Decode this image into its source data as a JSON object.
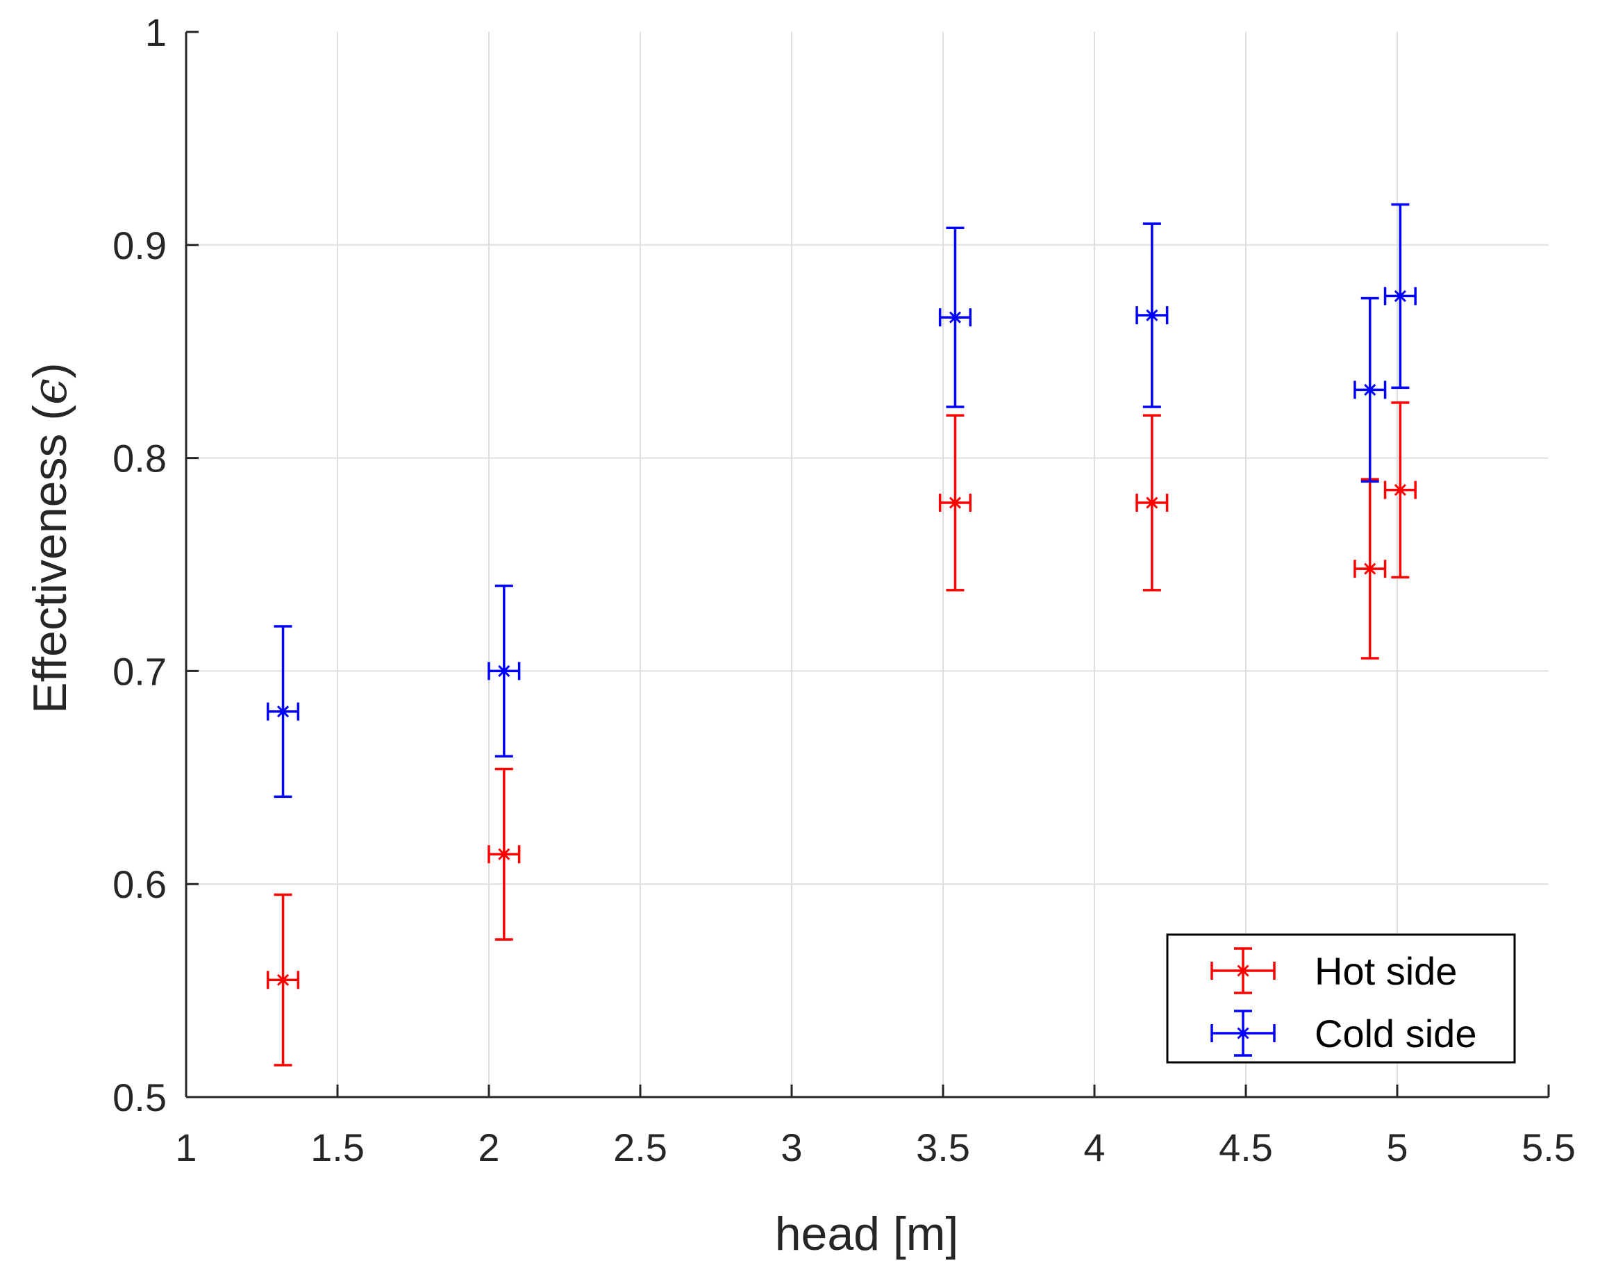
{
  "chart_data": {
    "type": "scatter",
    "title": "",
    "xlabel": "head [m]",
    "ylabel_main": "Effectiveness (",
    "ylabel_symbol": "ϵ",
    "ylabel_close": ")",
    "xlim": [
      1,
      5.5
    ],
    "ylim": [
      0.5,
      1
    ],
    "grid": true,
    "legend_placement": "bottom-right",
    "x_ticks": [
      "1",
      "1.5",
      "2",
      "2.5",
      "3",
      "3.5",
      "4",
      "4.5",
      "5",
      "5.5"
    ],
    "y_ticks": [
      "0.5",
      "0.6",
      "0.7",
      "0.8",
      "0.9",
      "1"
    ],
    "series": [
      {
        "name": "Hot side",
        "color": "#ff0000",
        "marker": "asterisk",
        "points": [
          {
            "x": 1.32,
            "y": 0.555,
            "yerr": 0.04,
            "xerr": 0.05
          },
          {
            "x": 2.05,
            "y": 0.614,
            "yerr": 0.04,
            "xerr": 0.05
          },
          {
            "x": 3.54,
            "y": 0.779,
            "yerr": 0.041,
            "xerr": 0.05
          },
          {
            "x": 4.19,
            "y": 0.779,
            "yerr": 0.041,
            "xerr": 0.05
          },
          {
            "x": 4.91,
            "y": 0.748,
            "yerr": 0.042,
            "xerr": 0.05
          },
          {
            "x": 5.01,
            "y": 0.785,
            "yerr": 0.041,
            "xerr": 0.05
          }
        ]
      },
      {
        "name": "Cold side",
        "color": "#0000ff",
        "marker": "asterisk",
        "points": [
          {
            "x": 1.32,
            "y": 0.681,
            "yerr": 0.04,
            "xerr": 0.05
          },
          {
            "x": 2.05,
            "y": 0.7,
            "yerr": 0.04,
            "xerr": 0.05
          },
          {
            "x": 3.54,
            "y": 0.866,
            "yerr": 0.042,
            "xerr": 0.05
          },
          {
            "x": 4.19,
            "y": 0.867,
            "yerr": 0.043,
            "xerr": 0.05
          },
          {
            "x": 4.91,
            "y": 0.832,
            "yerr": 0.043,
            "xerr": 0.05
          },
          {
            "x": 5.01,
            "y": 0.876,
            "yerr": 0.043,
            "xerr": 0.05
          }
        ]
      }
    ]
  }
}
